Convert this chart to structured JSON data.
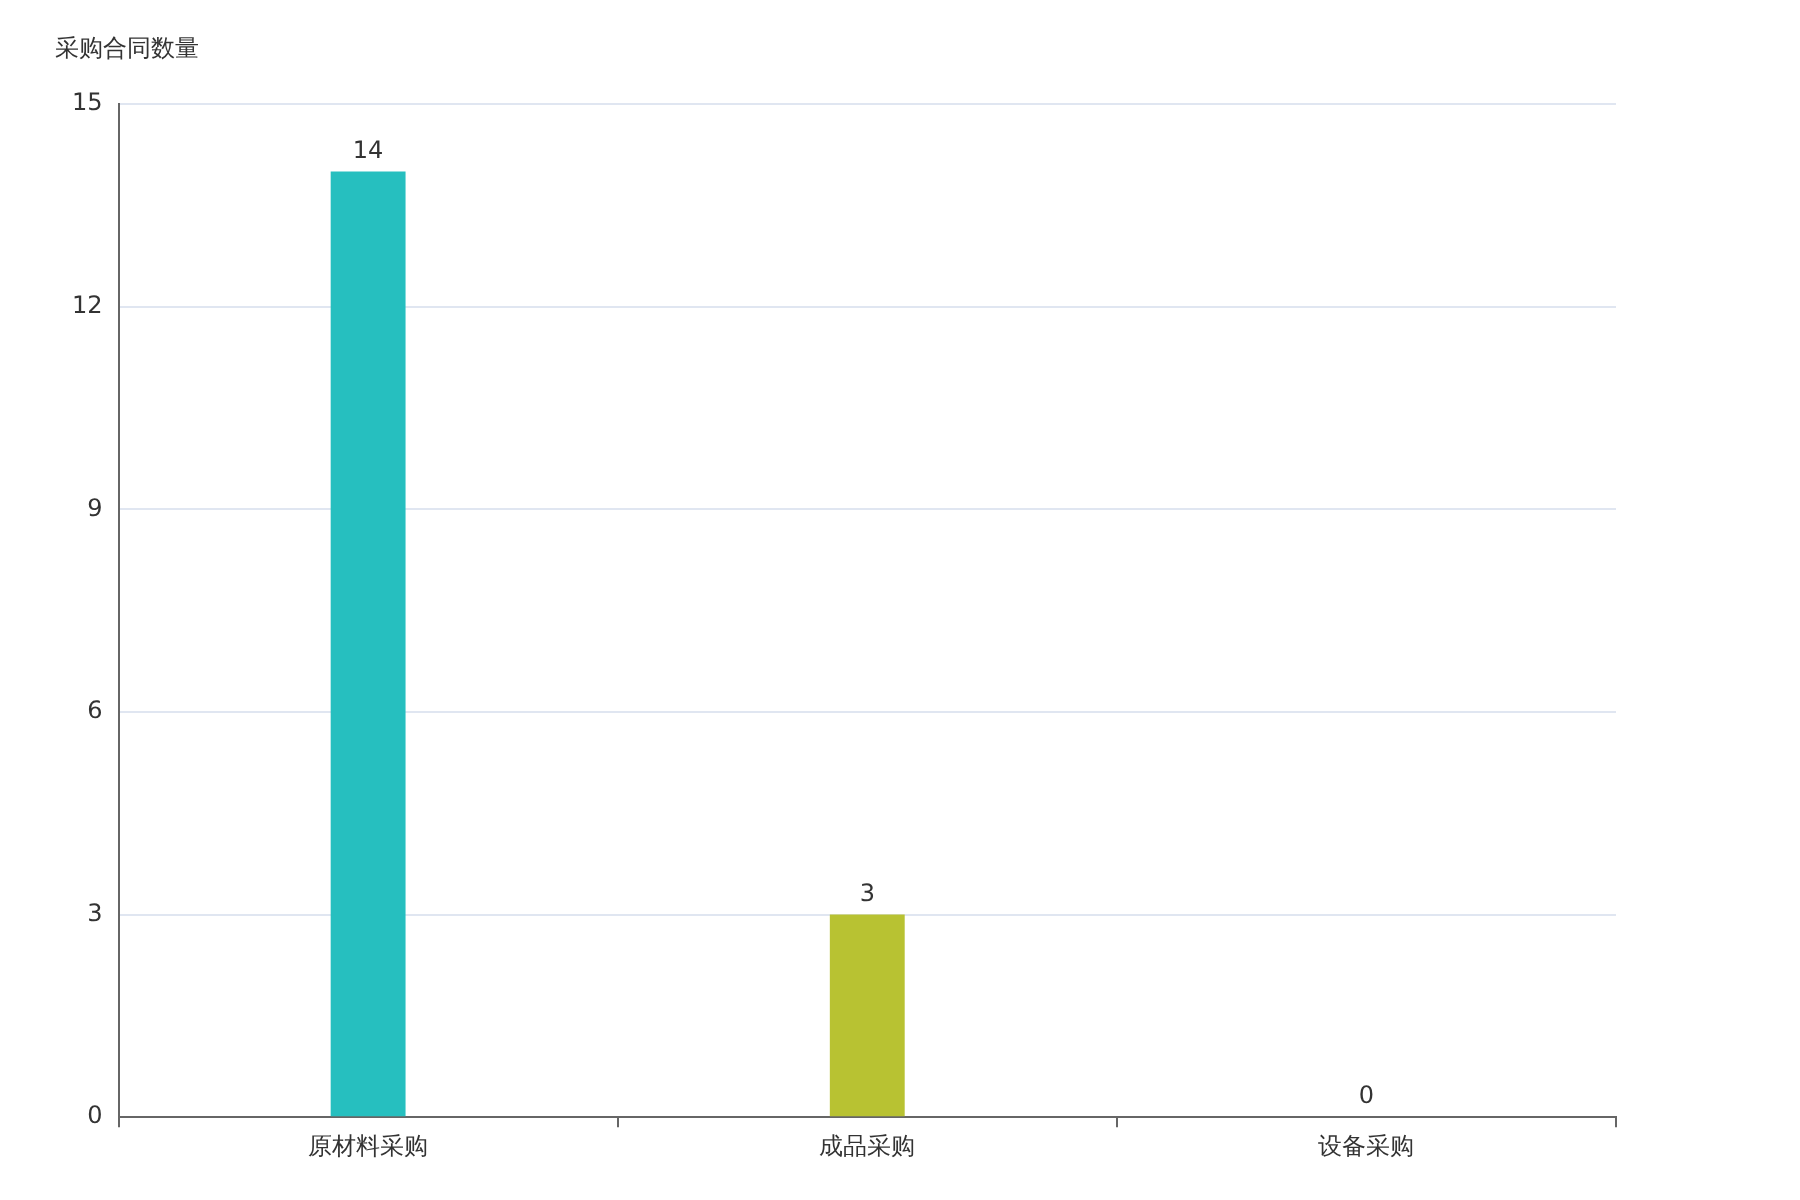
{
  "chart_data": {
    "type": "bar",
    "ylabel": "采购合同数量",
    "categories": [
      "原材料采购",
      "成品采购",
      "设备采购"
    ],
    "values": [
      14,
      3,
      0
    ],
    "colors": [
      "#26bfbf",
      "#b8c232",
      "#5b8ff9"
    ],
    "ylim": [
      0,
      15
    ],
    "yticks": [
      0,
      3,
      6,
      9,
      12,
      15
    ],
    "grid": "y",
    "data_labels": true
  }
}
